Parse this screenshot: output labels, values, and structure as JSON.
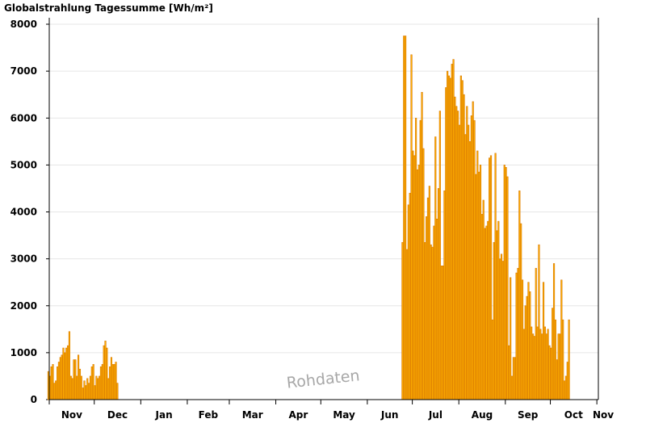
{
  "chart_data": {
    "type": "bar",
    "title": "Globalstrahlung Tagessumme [Wh/m²]",
    "watermark": "Rohdaten",
    "ylim": [
      0,
      8000
    ],
    "yticks": [
      0,
      1000,
      2000,
      3000,
      4000,
      5000,
      6000,
      7000,
      8000
    ],
    "month_labels": [
      "Nov",
      "Dec",
      "Jan",
      "Feb",
      "Mar",
      "Apr",
      "May",
      "Jun",
      "Jul",
      "Aug",
      "Sep",
      "Oct",
      "Nov"
    ],
    "grid": true,
    "colors": {
      "bar_fill": "#ffb000",
      "bar_stroke": "#d87800",
      "grid": "#e6e6e6"
    },
    "series": [
      {
        "name": "",
        "segments": [
          {
            "start": "Oct 31",
            "values": [
              600,
              500,
              700,
              750,
              350,
              400,
              700,
              800,
              900,
              950,
              1100,
              1000,
              1100,
              1150,
              1450,
              500,
              450,
              850,
              850,
              500,
              950,
              650,
              500,
              250,
              400,
              300,
              450,
              350,
              500,
              700,
              750,
              300,
              500,
              450,
              500,
              700,
              750,
              1150,
              1250,
              1100,
              450,
              700,
              900,
              750,
              750,
              800,
              350
            ]
          },
          {
            "start": "Jun 24",
            "values": [
              3350,
              7750,
              7750,
              3200,
              4150,
              4400,
              7350,
              5300,
              5200,
              6000,
              4900,
              5000,
              5950,
              6550,
              5350,
              3350,
              3900,
              4300,
              4550,
              3300,
              3250,
              3700,
              5600,
              3850,
              4500,
              6150,
              2850,
              2850,
              4450,
              6650,
              7000,
              6900,
              6850,
              7150,
              7250,
              6450,
              6250,
              6150,
              5850,
              6900,
              6800,
              6500,
              5650,
              6250,
              5850,
              5500,
              6050,
              6350,
              5950,
              4800,
              5300,
              4850,
              5000,
              3950,
              4250,
              3650,
              3700,
              3800,
              5150,
              5200,
              1700,
              3350,
              5250,
              3600,
              3800,
              3000,
              3100,
              2950,
              5000,
              4950,
              4750,
              1150,
              2600,
              500,
              900,
              900,
              2700,
              2800,
              4450,
              3750,
              2550,
              1500,
              2000,
              2200,
              2500,
              2300,
              1550,
              1400,
              1350,
              2800,
              1550,
              3300,
              1500,
              1400,
              2500,
              1550,
              1400,
              1500,
              1150,
              1100,
              1950,
              2900,
              1700,
              850,
              1400,
              1400,
              2550,
              1700,
              400,
              500,
              800,
              1700
            ]
          }
        ]
      }
    ]
  }
}
